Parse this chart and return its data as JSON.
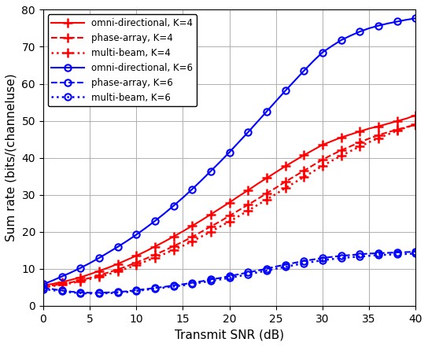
{
  "snr_db": [
    0,
    1,
    2,
    3,
    4,
    5,
    6,
    7,
    8,
    9,
    10,
    11,
    12,
    13,
    14,
    15,
    16,
    17,
    18,
    19,
    20,
    21,
    22,
    23,
    24,
    25,
    26,
    27,
    28,
    29,
    30,
    31,
    32,
    33,
    34,
    35,
    36,
    37,
    38,
    39,
    40
  ],
  "xlabel": "Transmit SNR (dB)",
  "ylabel": "Sum rate (bits/(channeluse)",
  "xlim": [
    0,
    40
  ],
  "ylim": [
    0,
    80
  ],
  "xticks": [
    0,
    5,
    10,
    15,
    20,
    25,
    30,
    35,
    40
  ],
  "yticks": [
    0,
    10,
    20,
    30,
    40,
    50,
    60,
    70,
    80
  ],
  "legend_entries": [
    "omni-directional, K=4",
    "phase-array, K=4",
    "multi-beam, K=4",
    "omni-directional, K=6",
    "phase-array, K=6",
    "multi-beam, K=6"
  ],
  "red_solid_plus": [
    5.5,
    5.9,
    6.4,
    7.0,
    7.7,
    8.5,
    9.4,
    10.3,
    11.3,
    12.4,
    13.5,
    14.7,
    16.0,
    17.3,
    18.7,
    20.1,
    21.6,
    23.1,
    24.7,
    26.3,
    27.9,
    29.6,
    31.2,
    32.9,
    34.5,
    36.1,
    37.7,
    39.2,
    40.7,
    42.1,
    43.5,
    44.5,
    45.5,
    46.3,
    47.1,
    47.9,
    48.5,
    49.2,
    49.9,
    50.6,
    51.5
  ],
  "red_dashed_plus": [
    5.2,
    5.5,
    5.9,
    6.3,
    6.9,
    7.5,
    8.2,
    9.0,
    9.8,
    10.7,
    11.7,
    12.7,
    13.8,
    14.9,
    16.1,
    17.3,
    18.6,
    20.0,
    21.4,
    22.8,
    24.3,
    25.8,
    27.3,
    28.8,
    30.4,
    31.9,
    33.5,
    35.0,
    36.5,
    38.0,
    39.5,
    40.8,
    42.0,
    43.1,
    44.2,
    45.2,
    46.1,
    46.9,
    47.6,
    48.3,
    48.9
  ],
  "red_dotted_plus": [
    5.0,
    5.3,
    5.7,
    6.1,
    6.6,
    7.2,
    7.8,
    8.5,
    9.3,
    10.1,
    11.0,
    12.0,
    13.0,
    14.0,
    15.1,
    16.2,
    17.4,
    18.7,
    20.0,
    21.4,
    22.8,
    24.2,
    25.7,
    27.2,
    28.7,
    30.2,
    31.8,
    33.3,
    34.8,
    36.3,
    37.8,
    39.2,
    40.5,
    41.8,
    43.0,
    44.2,
    45.3,
    46.3,
    47.3,
    48.2,
    49.0
  ],
  "blue_solid_circle": [
    5.8,
    6.8,
    7.9,
    9.0,
    10.2,
    11.5,
    12.9,
    14.4,
    15.9,
    17.5,
    19.2,
    21.0,
    22.9,
    24.9,
    27.0,
    29.2,
    31.5,
    33.9,
    36.4,
    38.9,
    41.5,
    44.2,
    46.9,
    49.7,
    52.5,
    55.3,
    58.1,
    60.8,
    63.5,
    66.1,
    68.5,
    70.2,
    71.8,
    73.0,
    74.1,
    75.0,
    75.7,
    76.3,
    76.8,
    77.3,
    77.7
  ],
  "blue_dashed_circle": [
    4.8,
    4.5,
    4.1,
    3.8,
    3.6,
    3.5,
    3.5,
    3.6,
    3.7,
    3.9,
    4.2,
    4.5,
    4.8,
    5.1,
    5.5,
    5.8,
    6.2,
    6.6,
    7.1,
    7.5,
    8.0,
    8.5,
    9.0,
    9.5,
    10.0,
    10.6,
    11.1,
    11.6,
    12.1,
    12.5,
    12.9,
    13.2,
    13.5,
    13.7,
    13.9,
    14.1,
    14.2,
    14.3,
    14.4,
    14.5,
    14.6
  ],
  "blue_dotted_circle": [
    4.5,
    4.2,
    3.9,
    3.6,
    3.4,
    3.3,
    3.3,
    3.4,
    3.5,
    3.7,
    4.0,
    4.3,
    4.6,
    4.9,
    5.2,
    5.5,
    5.9,
    6.3,
    6.7,
    7.1,
    7.5,
    8.0,
    8.5,
    9.0,
    9.5,
    10.0,
    10.5,
    11.0,
    11.5,
    11.9,
    12.3,
    12.6,
    12.9,
    13.1,
    13.3,
    13.5,
    13.7,
    13.8,
    13.9,
    14.0,
    14.1
  ],
  "red_color": "#FF0000",
  "blue_color": "#0000FF",
  "grid_color": "#b0b0b0",
  "bg_color": "#ffffff"
}
